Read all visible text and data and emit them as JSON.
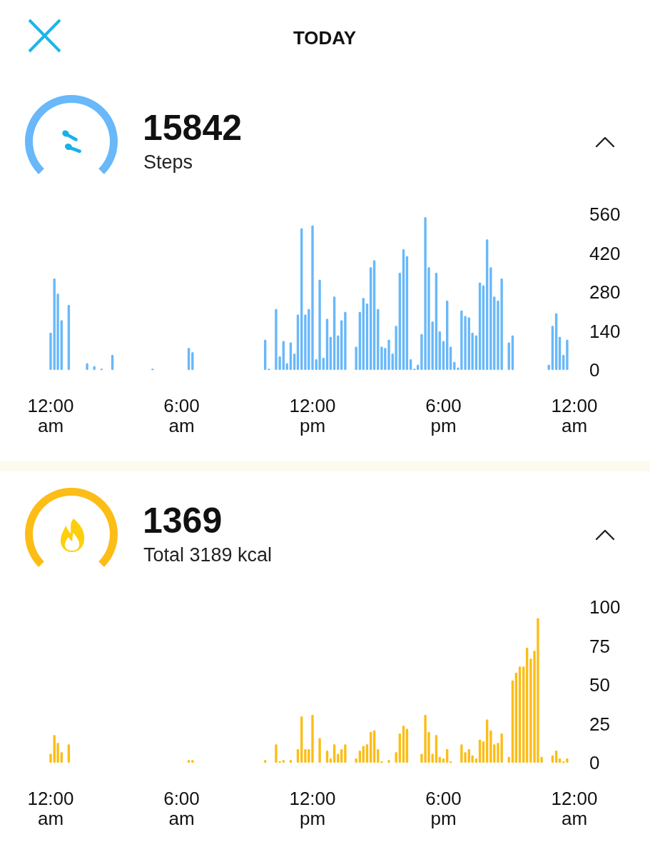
{
  "chart_data": [
    {
      "type": "bar",
      "title": "15842",
      "subtitle": "Steps",
      "annotations": [
        "TODAY"
      ],
      "color": "#68b8fa",
      "x": [
        0,
        0.17,
        0.33,
        0.5,
        0.83,
        1.67,
        2,
        2.33,
        2.83,
        4.67,
        6.33,
        6.5,
        9.83,
        10,
        10.33,
        10.5,
        10.67,
        10.83,
        11,
        11.17,
        11.33,
        11.5,
        11.67,
        11.83,
        12,
        12.17,
        12.33,
        12.5,
        12.67,
        12.83,
        13,
        13.17,
        13.33,
        13.5,
        14,
        14.17,
        14.33,
        14.5,
        14.67,
        14.83,
        15,
        15.17,
        15.33,
        15.5,
        15.67,
        15.83,
        16,
        16.17,
        16.33,
        16.5,
        16.67,
        16.83,
        17,
        17.17,
        17.33,
        17.5,
        17.67,
        17.83,
        18,
        18.17,
        18.33,
        18.5,
        18.67,
        18.83,
        19,
        19.17,
        19.33,
        19.5,
        19.67,
        19.83,
        20,
        20.17,
        20.33,
        20.5,
        20.67,
        21,
        21.17,
        22.83,
        23,
        23.17,
        23.33,
        23.5,
        23.67
      ],
      "values": [
        135,
        330,
        275,
        180,
        235,
        25,
        15,
        5,
        55,
        5,
        80,
        65,
        110,
        5,
        220,
        50,
        105,
        25,
        100,
        60,
        200,
        510,
        200,
        220,
        520,
        40,
        325,
        45,
        185,
        120,
        265,
        125,
        180,
        210,
        85,
        210,
        260,
        240,
        370,
        395,
        220,
        85,
        80,
        110,
        60,
        160,
        350,
        435,
        410,
        40,
        5,
        20,
        130,
        550,
        370,
        175,
        350,
        140,
        105,
        250,
        85,
        30,
        10,
        215,
        195,
        190,
        135,
        125,
        315,
        305,
        470,
        370,
        265,
        250,
        330,
        100,
        125,
        20,
        160,
        205,
        120,
        55,
        110
      ],
      "xlim": [
        0,
        24
      ],
      "xticks": [
        {
          "value": 0,
          "label": "12:00 am"
        },
        {
          "value": 6,
          "label": "6:00 am"
        },
        {
          "value": 12,
          "label": "12:00 pm"
        },
        {
          "value": 18,
          "label": "6:00 pm"
        },
        {
          "value": 24,
          "label": "12:00 am"
        }
      ],
      "ylim": [
        0,
        560
      ],
      "yticks": [
        0,
        140,
        280,
        420,
        560
      ]
    },
    {
      "type": "bar",
      "title": "1369",
      "subtitle": "Total 3189 kcal",
      "color": "#fcbd17",
      "x": [
        0,
        0.17,
        0.33,
        0.5,
        0.83,
        6.33,
        6.5,
        9.83,
        10.33,
        10.5,
        10.67,
        11,
        11.33,
        11.5,
        11.67,
        11.83,
        12,
        12.33,
        12.67,
        12.83,
        13,
        13.17,
        13.33,
        13.5,
        14,
        14.17,
        14.33,
        14.5,
        14.67,
        14.83,
        15,
        15.17,
        15.5,
        15.83,
        16,
        16.17,
        16.33,
        17,
        17.17,
        17.33,
        17.5,
        17.67,
        17.83,
        18,
        18.17,
        18.33,
        18.83,
        19,
        19.17,
        19.33,
        19.5,
        19.67,
        19.83,
        20,
        20.17,
        20.33,
        20.5,
        20.67,
        21,
        21.17,
        21.33,
        21.5,
        21.67,
        21.83,
        22,
        22.17,
        22.33,
        22.5,
        23,
        23.17,
        23.33,
        23.5,
        23.67
      ],
      "values": [
        6,
        18,
        13,
        7,
        12,
        2,
        2,
        2,
        12,
        1,
        2,
        2,
        9,
        30,
        9,
        9,
        31,
        16,
        8,
        3,
        12,
        6,
        9,
        12,
        3,
        8,
        11,
        12,
        20,
        21,
        9,
        1,
        2,
        7,
        19,
        24,
        22,
        6,
        31,
        20,
        6,
        18,
        4,
        3,
        9,
        1,
        12,
        7,
        9,
        5,
        3,
        15,
        14,
        28,
        21,
        12,
        13,
        19,
        4,
        53,
        58,
        62,
        62,
        74,
        67,
        72,
        93,
        4,
        5,
        8,
        3,
        1,
        3
      ],
      "xlim": [
        0,
        24
      ],
      "xticks": [
        {
          "value": 0,
          "label": "12:00 am"
        },
        {
          "value": 6,
          "label": "6:00 am"
        },
        {
          "value": 12,
          "label": "12:00 pm"
        },
        {
          "value": 18,
          "label": "6:00 pm"
        },
        {
          "value": 24,
          "label": "12:00 am"
        }
      ],
      "ylim": [
        0,
        100
      ],
      "yticks": [
        0,
        25,
        50,
        75,
        100
      ]
    }
  ]
}
